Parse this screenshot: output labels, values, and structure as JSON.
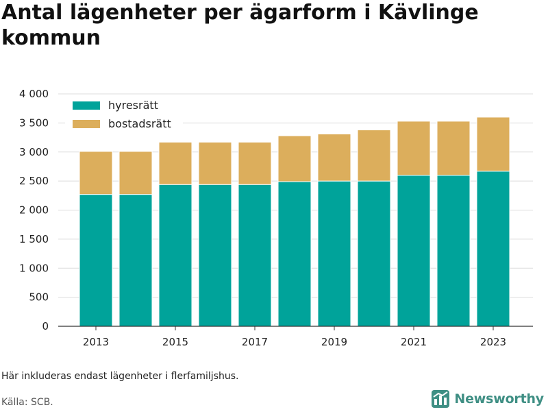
{
  "title": "Antal lägenheter per ägarform i Kävlinge kommun",
  "footnote": "Här inkluderas endast lägenheter i flerfamiljshus.",
  "source": "Källa: SCB.",
  "brand": "Newsworthy",
  "colors": {
    "hyresratt": "#00a39a",
    "bostadsratt": "#dcae5c",
    "grid": "#dcdcdc",
    "axis": "#333333",
    "brand": "#3f8f84"
  },
  "chart_data": {
    "type": "bar",
    "stacked": true,
    "categories": [
      "2013",
      "2014",
      "2015",
      "2016",
      "2017",
      "2018",
      "2019",
      "2020",
      "2021",
      "2022",
      "2023"
    ],
    "x_tick_labels": [
      "2013",
      "2015",
      "2017",
      "2019",
      "2021",
      "2023"
    ],
    "series": [
      {
        "name": "hyresrätt",
        "color": "#00a39a",
        "values": [
          2270,
          2270,
          2440,
          2440,
          2440,
          2490,
          2500,
          2500,
          2600,
          2600,
          2670
        ]
      },
      {
        "name": "bostadsrätt",
        "color": "#dcae5c",
        "values": [
          740,
          740,
          730,
          730,
          730,
          790,
          810,
          880,
          930,
          930,
          930
        ]
      }
    ],
    "ylim": [
      0,
      4000
    ],
    "y_ticks": [
      0,
      500,
      1000,
      1500,
      2000,
      2500,
      3000,
      3500,
      4000
    ],
    "y_tick_labels": [
      "0",
      "500",
      "1 000",
      "1 500",
      "2 000",
      "2 500",
      "3 000",
      "3 500",
      "4 000"
    ],
    "xlabel": "",
    "ylabel": "",
    "grid": true,
    "legend_position": "top-left"
  }
}
